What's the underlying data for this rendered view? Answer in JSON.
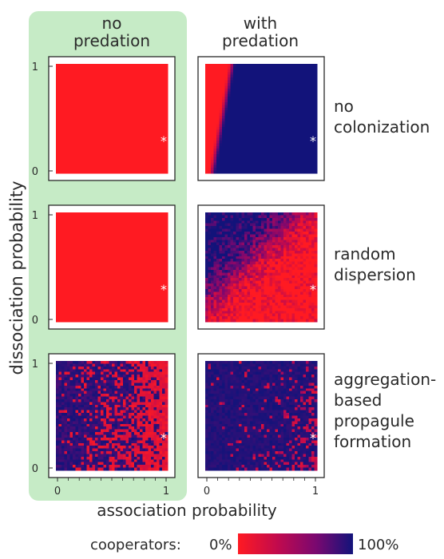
{
  "chart_data": {
    "type": "heatmap",
    "column_titles": [
      [
        "no",
        "predation"
      ],
      [
        "with",
        "predation"
      ]
    ],
    "row_titles": [
      [
        "no",
        "colonization"
      ],
      [
        "random",
        "dispersion"
      ],
      [
        "aggregation-",
        "based",
        "propagule",
        "formation"
      ]
    ],
    "xlabel": "association probability",
    "ylabel": "dissociation probability",
    "x_ticks": [
      "0",
      "1"
    ],
    "y_ticks": [
      "0",
      "1"
    ],
    "xlim": [
      0,
      1
    ],
    "ylim": [
      0,
      1
    ],
    "marker": "*",
    "marker_point": [
      1.0,
      0.3
    ],
    "highlight_column": 0,
    "highlight_color": "#c6ebc6",
    "colorbar": {
      "label": "cooperators:",
      "min_label": "0%",
      "max_label": "100%",
      "colors": [
        "#ff1a22",
        "#c00a4e",
        "#7a0870",
        "#12137a"
      ]
    },
    "panels": [
      {
        "row": 0,
        "col": 0,
        "pattern": "all_red",
        "cooperator_fraction_summary": 0.0
      },
      {
        "row": 0,
        "col": 1,
        "pattern": "sharp_boundary",
        "cooperator_fraction_summary": 0.85
      },
      {
        "row": 1,
        "col": 0,
        "pattern": "all_red",
        "cooperator_fraction_summary": 0.0
      },
      {
        "row": 1,
        "col": 1,
        "pattern": "diffuse_diagonal",
        "cooperator_fraction_summary": 0.35
      },
      {
        "row": 2,
        "col": 0,
        "pattern": "noisy_blue_left",
        "cooperator_fraction_summary": 0.6
      },
      {
        "row": 2,
        "col": 1,
        "pattern": "noisy_mostly_blue",
        "cooperator_fraction_summary": 0.85
      }
    ]
  }
}
